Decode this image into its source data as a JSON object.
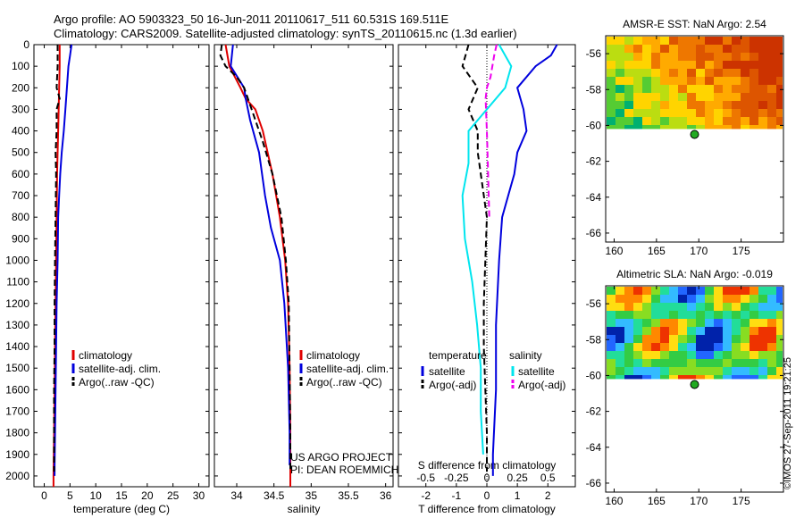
{
  "header": {
    "line1": "Argo profile: AO 5903323_50 16-Jun-2011 20110617_511 60.531S 169.511E",
    "line2": "Climatology: CARS2009. Satellite-adjusted climatology: synTS_20110615.nc (1.3d earlier)"
  },
  "footer_stamp": "©IMOS 27-Sep-2011 19:21:25",
  "colors": {
    "climatology": "#e00000",
    "satellite": "#0000dd",
    "argo": "#000000",
    "sal_satellite": "#00e5ee",
    "sal_argo": "#ee00ee"
  },
  "chart_data": [
    {
      "id": "temperature",
      "type": "line",
      "xlabel": "temperature (deg C)",
      "xlim": [
        -2,
        32
      ],
      "ylim": [
        2050,
        0
      ],
      "xticks": [
        "0",
        "5",
        "10",
        "15",
        "20",
        "25",
        "30"
      ],
      "xtick_values": [
        0,
        5,
        10,
        15,
        20,
        25,
        30
      ],
      "yticks": [
        "0",
        "100",
        "200",
        "300",
        "400",
        "500",
        "600",
        "700",
        "800",
        "900",
        "1000",
        "1100",
        "1200",
        "1300",
        "1400",
        "1500",
        "1600",
        "1700",
        "1800",
        "1900",
        "2000"
      ],
      "ytick_values": [
        0,
        100,
        200,
        300,
        400,
        500,
        600,
        700,
        800,
        900,
        1000,
        1100,
        1200,
        1300,
        1400,
        1500,
        1600,
        1700,
        1800,
        1900,
        2000
      ],
      "legend": [
        "climatology",
        "satellite-adj. clim.",
        "Argo(..raw -QC)"
      ],
      "series": [
        {
          "name": "climatology",
          "color_key": "climatology",
          "dash": false,
          "points": [
            [
              3.0,
              0
            ],
            [
              3.0,
              100
            ],
            [
              2.9,
              200
            ],
            [
              2.8,
              300
            ],
            [
              2.7,
              400
            ],
            [
              2.5,
              600
            ],
            [
              2.4,
              800
            ],
            [
              2.3,
              1000
            ],
            [
              2.2,
              1200
            ],
            [
              2.1,
              1400
            ],
            [
              2.0,
              1600
            ],
            [
              1.9,
              1800
            ],
            [
              1.8,
              2000
            ],
            [
              1.8,
              2050
            ]
          ]
        },
        {
          "name": "satellite-adj. clim.",
          "color_key": "satellite",
          "dash": false,
          "points": [
            [
              5.3,
              0
            ],
            [
              5.0,
              50
            ],
            [
              4.7,
              100
            ],
            [
              4.4,
              200
            ],
            [
              4.1,
              300
            ],
            [
              3.8,
              400
            ],
            [
              3.4,
              500
            ],
            [
              3.1,
              600
            ],
            [
              2.9,
              700
            ],
            [
              2.7,
              800
            ],
            [
              2.6,
              1000
            ],
            [
              2.4,
              1200
            ],
            [
              2.3,
              1400
            ],
            [
              2.2,
              1600
            ],
            [
              2.1,
              1800
            ],
            [
              2.0,
              1950
            ],
            [
              2.0,
              2000
            ]
          ]
        },
        {
          "name": "Argo(..raw -QC)",
          "color_key": "argo",
          "dash": true,
          "points": [
            [
              2.6,
              0
            ],
            [
              2.6,
              100
            ],
            [
              2.4,
              200
            ],
            [
              3.0,
              250
            ],
            [
              2.4,
              300
            ],
            [
              2.4,
              400
            ],
            [
              2.2,
              500
            ],
            [
              2.3,
              600
            ],
            [
              2.2,
              800
            ],
            [
              2.1,
              1000
            ],
            [
              2.0,
              1200
            ],
            [
              2.0,
              1400
            ],
            [
              1.9,
              1600
            ],
            [
              1.9,
              1800
            ],
            [
              1.9,
              1980
            ]
          ]
        }
      ]
    },
    {
      "id": "salinity",
      "type": "line",
      "xlabel": "salinity",
      "xlim": [
        33.7,
        36.1
      ],
      "ylim": [
        2050,
        0
      ],
      "xticks": [
        "34",
        "34.5",
        "35",
        "35.5",
        "36"
      ],
      "xtick_values": [
        34,
        34.5,
        35,
        35.5,
        36
      ],
      "legend": [
        "climatology",
        "satellite-adj. clim.",
        "Argo(..raw -QC)"
      ],
      "annotation_lines": [
        "US ARGO PROJECT",
        "PI: DEAN ROEMMICH"
      ],
      "series": [
        {
          "name": "climatology",
          "color_key": "climatology",
          "dash": false,
          "points": [
            [
              33.85,
              0
            ],
            [
              33.9,
              100
            ],
            [
              34.05,
              200
            ],
            [
              34.12,
              250
            ],
            [
              34.25,
              300
            ],
            [
              34.35,
              400
            ],
            [
              34.48,
              600
            ],
            [
              34.58,
              800
            ],
            [
              34.65,
              1000
            ],
            [
              34.69,
              1200
            ],
            [
              34.71,
              1500
            ],
            [
              34.72,
              1800
            ],
            [
              34.72,
              2050
            ]
          ]
        },
        {
          "name": "satellite-adj. clim.",
          "color_key": "satellite",
          "dash": false,
          "points": [
            [
              33.95,
              0
            ],
            [
              33.92,
              100
            ],
            [
              34.1,
              200
            ],
            [
              34.12,
              250
            ],
            [
              34.18,
              350
            ],
            [
              34.3,
              500
            ],
            [
              34.38,
              700
            ],
            [
              34.46,
              850
            ],
            [
              34.58,
              1000
            ],
            [
              34.64,
              1200
            ],
            [
              34.69,
              1500
            ],
            [
              34.71,
              1800
            ],
            [
              34.71,
              1950
            ]
          ]
        },
        {
          "name": "Argo(..raw -QC)",
          "color_key": "argo",
          "dash": true,
          "points": [
            [
              33.8,
              0
            ],
            [
              33.78,
              50
            ],
            [
              33.85,
              100
            ],
            [
              34.0,
              150
            ],
            [
              34.1,
              200
            ],
            [
              34.2,
              300
            ],
            [
              34.35,
              450
            ],
            [
              34.48,
              600
            ],
            [
              34.6,
              800
            ],
            [
              34.66,
              1000
            ],
            [
              34.7,
              1200
            ],
            [
              34.71,
              1500
            ],
            [
              34.72,
              1800
            ],
            [
              34.72,
              1980
            ]
          ]
        }
      ]
    },
    {
      "id": "differences",
      "type": "line",
      "xlabel": "T difference from climatology",
      "top_xlabel": "S difference from climatology",
      "xlim": [
        -2.9,
        2.9
      ],
      "ylim": [
        2050,
        0
      ],
      "xticks": [
        "-2",
        "-1",
        "0",
        "1",
        "2"
      ],
      "xtick_values": [
        -2,
        -1,
        0,
        1,
        2
      ],
      "sticks": [
        "-0.5",
        "-0.25",
        "0",
        "0.25",
        "0.5"
      ],
      "stick_values": [
        -0.5,
        -0.25,
        0,
        0.25,
        0.5
      ],
      "legend_left_title": "temperature",
      "legend_right_title": "salinity",
      "legend_left": [
        "satellite",
        "Argo(-adj)"
      ],
      "legend_right": [
        "satellite",
        "Argo(-adj)"
      ],
      "series": [
        {
          "name": "T satellite",
          "color_key": "satellite",
          "dash": false,
          "points": [
            [
              2.3,
              0
            ],
            [
              2.1,
              50
            ],
            [
              1.6,
              100
            ],
            [
              1.0,
              200
            ],
            [
              1.2,
              300
            ],
            [
              1.3,
              400
            ],
            [
              1.0,
              500
            ],
            [
              0.9,
              600
            ],
            [
              0.7,
              700
            ],
            [
              0.5,
              800
            ],
            [
              0.4,
              1000
            ],
            [
              0.3,
              1300
            ],
            [
              0.3,
              1600
            ],
            [
              0.2,
              1900
            ],
            [
              0.2,
              2000
            ]
          ]
        },
        {
          "name": "T Argo(-adj)",
          "color_key": "argo",
          "dash": true,
          "points": [
            [
              -0.6,
              0
            ],
            [
              -0.8,
              100
            ],
            [
              -0.3,
              200
            ],
            [
              -0.6,
              300
            ],
            [
              -0.3,
              400
            ],
            [
              -0.3,
              500
            ],
            [
              -0.2,
              600
            ],
            [
              -0.1,
              700
            ],
            [
              0,
              800
            ],
            [
              -0.05,
              1000
            ],
            [
              -0.1,
              1200
            ],
            [
              -0.1,
              1400
            ],
            [
              -0.05,
              1600
            ],
            [
              0,
              1800
            ],
            [
              0,
              1980
            ]
          ]
        },
        {
          "name": "S satellite",
          "color_key": "sal_satellite",
          "dash": false,
          "points": [
            [
              0.1,
              0
            ],
            [
              0.2,
              100
            ],
            [
              0.15,
              200
            ],
            [
              -0.15,
              400
            ],
            [
              -0.15,
              550
            ],
            [
              -0.2,
              700
            ],
            [
              -0.18,
              900
            ],
            [
              -0.12,
              1100
            ],
            [
              -0.08,
              1300
            ],
            [
              -0.05,
              1500
            ],
            [
              -0.05,
              1700
            ],
            [
              -0.03,
              1900
            ]
          ]
        },
        {
          "name": "S Argo(-adj)",
          "color_key": "sal_argo",
          "dash": true,
          "points": [
            [
              0.08,
              0
            ],
            [
              0.06,
              50
            ],
            [
              0.03,
              150
            ],
            [
              0.0,
              200
            ],
            [
              -0.01,
              250
            ],
            [
              0.0,
              400
            ],
            [
              0.01,
              600
            ],
            [
              0.02,
              800
            ]
          ]
        }
      ]
    },
    {
      "id": "sst_map",
      "type": "heatmap",
      "title": "AMSR-E SST: NaN Argo: 2.54",
      "xlim": [
        159,
        180
      ],
      "ylim": [
        -66.5,
        -55
      ],
      "xticks": [
        "160",
        "165",
        "170",
        "175"
      ],
      "xtick_values": [
        160,
        165,
        170,
        175
      ],
      "yticks": [
        "-56",
        "-58",
        "-60",
        "-62",
        "-64",
        "-66"
      ],
      "ytick_values": [
        -56,
        -58,
        -60,
        -62,
        -64,
        -66
      ],
      "data_lat_min": -60.2,
      "profile_point": [
        169.5,
        -60.5
      ]
    },
    {
      "id": "sla_map",
      "type": "heatmap",
      "title": "Altimetric SLA: NaN Argo: -0.019",
      "xlim": [
        159,
        180
      ],
      "ylim": [
        -66.5,
        -55
      ],
      "xticks": [
        "160",
        "165",
        "170",
        "175"
      ],
      "xtick_values": [
        160,
        165,
        170,
        175
      ],
      "yticks": [
        "-56",
        "-58",
        "-60",
        "-62",
        "-64",
        "-66"
      ],
      "ytick_values": [
        -56,
        -58,
        -60,
        -62,
        -64,
        -66
      ],
      "data_lat_min": -60.2,
      "profile_point": [
        169.5,
        -60.5
      ]
    }
  ]
}
